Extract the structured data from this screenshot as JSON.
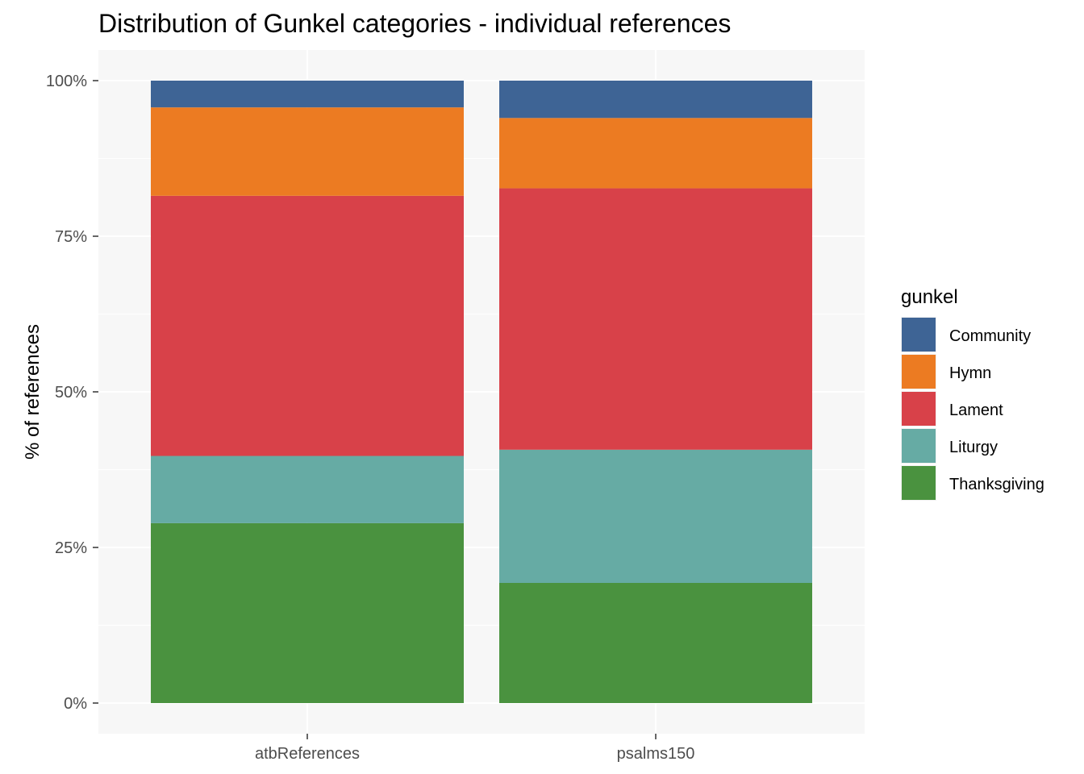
{
  "chart_data": {
    "type": "bar",
    "stacked": true,
    "title": "Distribution of Gunkel categories - individual references",
    "xlabel": "",
    "ylabel": "% of references",
    "categories": [
      "atbReferences",
      "psalms150"
    ],
    "ylim": [
      0,
      1
    ],
    "yticks": [
      0,
      0.25,
      0.5,
      0.75,
      1.0
    ],
    "ytick_labels": [
      "0%",
      "25%",
      "50%",
      "75%",
      "100%"
    ],
    "legend_title": "gunkel",
    "legend_position": "right",
    "grid": true,
    "series": [
      {
        "name": "Thanksgiving",
        "color": "#4a923f",
        "values": [
          0.289,
          0.193
        ]
      },
      {
        "name": "Liturgy",
        "color": "#66aba4",
        "values": [
          0.108,
          0.214
        ]
      },
      {
        "name": "Lament",
        "color": "#d84149",
        "values": [
          0.418,
          0.42
        ]
      },
      {
        "name": "Hymn",
        "color": "#ec7b22",
        "values": [
          0.142,
          0.113
        ]
      },
      {
        "name": "Community",
        "color": "#3e6495",
        "values": [
          0.043,
          0.06
        ]
      }
    ],
    "legend_order": [
      "Community",
      "Hymn",
      "Lament",
      "Liturgy",
      "Thanksgiving"
    ]
  }
}
